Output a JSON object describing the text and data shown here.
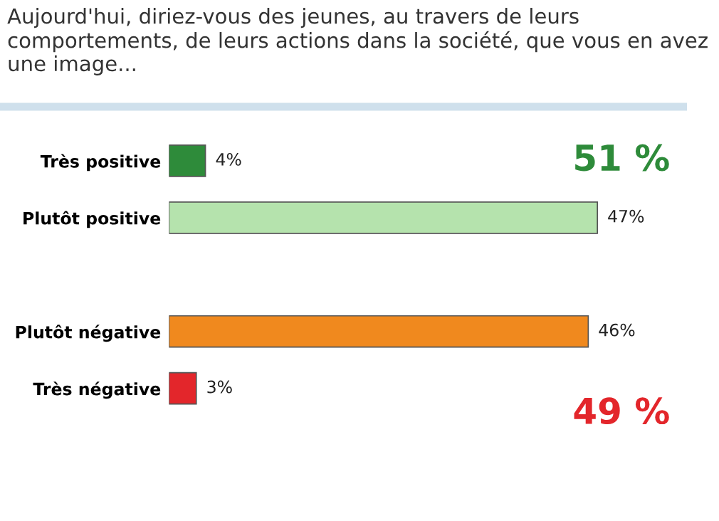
{
  "chart_data": {
    "type": "bar",
    "orientation": "horizontal",
    "title": "Aujourd'hui, diriez-vous des jeunes, au travers de leurs comportements, de leurs actions dans la société, que vous en avez une image...",
    "categories": [
      "Très positive",
      "Plutôt positive",
      null,
      "Plutôt négative",
      "Très négative"
    ],
    "values": [
      4,
      47,
      null,
      46,
      3
    ],
    "colors": [
      "#2e8b3a",
      "#b5e3ad",
      "#ffffff",
      "#f0891e",
      "#e3262b"
    ],
    "value_labels": [
      "4%",
      "47%",
      null,
      "46%",
      "3%"
    ],
    "grid": false,
    "legend": false,
    "annotations": [
      "51 %",
      "49 %"
    ]
  }
}
